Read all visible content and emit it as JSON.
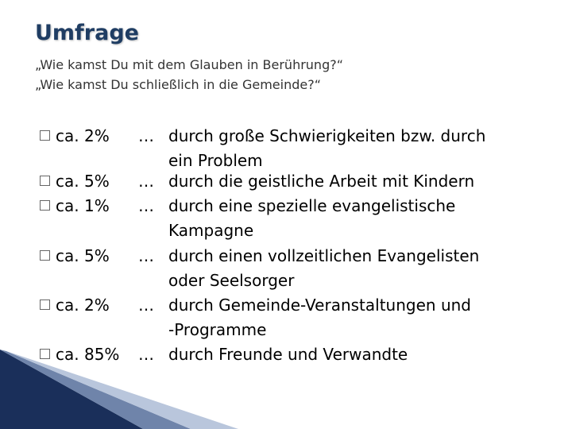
{
  "title": "Umfrage",
  "subtitles": [
    "„Wie kamst Du mit dem Glauben in Berührung?“",
    "„Wie kamst Du schließlich in die Gemeinde?“"
  ],
  "ellipsis": "…",
  "items": [
    {
      "percent": "ca. 2%",
      "lines": [
        "durch große Schwierigkeiten bzw. durch",
        "ein Problem"
      ]
    },
    {
      "percent": "ca. 5%",
      "lines": [
        "durch die geistliche Arbeit mit Kindern"
      ]
    },
    {
      "percent": "ca. 1%",
      "lines": [
        "durch eine spezielle evangelistische",
        "Kampagne"
      ]
    },
    {
      "percent": "ca. 5%",
      "lines": [
        "durch einen vollzeitlichen Evangelisten",
        "oder Seelsorger"
      ]
    },
    {
      "percent": "ca. 2%",
      "lines": [
        "durch Gemeinde-Veranstaltungen und",
        "-Programme"
      ]
    },
    {
      "percent": "ca. 85%",
      "lines": [
        "durch Freunde und Verwandte"
      ]
    }
  ],
  "colors": {
    "title": "#1f3d63",
    "accent_dark": "#1a2f5a",
    "accent_light": "#8da0bf"
  }
}
